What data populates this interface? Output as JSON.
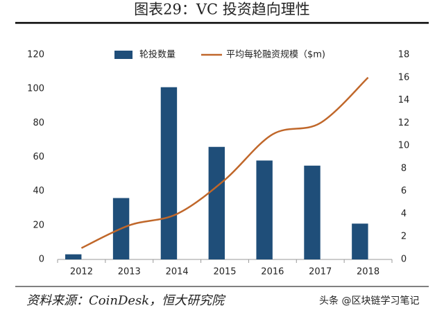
{
  "chart_data": {
    "type": "bar_line",
    "title": "图表29：VC 投资趋向理性",
    "source": "资料来源：CoinDesk，恒大研究院",
    "watermark": "头条 @区块链学习笔记",
    "categories": [
      "2012",
      "2013",
      "2014",
      "2015",
      "2016",
      "2017",
      "2018"
    ],
    "series": [
      {
        "name": "轮投数量",
        "color": "#1f4e79",
        "type": "bar",
        "values": [
          3,
          36,
          101,
          66,
          58,
          55,
          21
        ]
      },
      {
        "name": "平均每轮融资规模（$m)",
        "color": "#c0672a",
        "type": "line",
        "axis": "y2",
        "values": [
          1,
          3,
          4,
          7,
          11,
          12,
          16
        ]
      }
    ],
    "ylim": [
      0,
      120
    ],
    "yticks": [
      0,
      20,
      40,
      60,
      80,
      100,
      120
    ],
    "y2lim": [
      0,
      18
    ],
    "y2ticks": [
      0,
      2,
      4,
      6,
      8,
      10,
      12,
      14,
      16,
      18
    ]
  }
}
